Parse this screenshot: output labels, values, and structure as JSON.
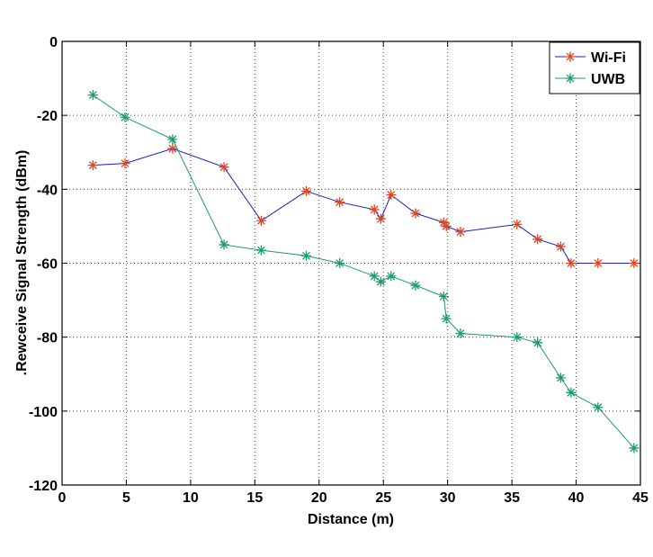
{
  "chart_data": {
    "type": "line",
    "title": "",
    "xlabel": "Distance (m)",
    "ylabel": ".Rewceive Signal Strength   (dBm)",
    "xlim": [
      0,
      45
    ],
    "ylim": [
      -120,
      0
    ],
    "xticks": [
      0,
      5,
      10,
      15,
      20,
      25,
      30,
      35,
      40,
      45
    ],
    "yticks": [
      0,
      -20,
      -40,
      -60,
      -80,
      -100,
      -120
    ],
    "grid": true,
    "legend_position": "top-right",
    "series": [
      {
        "name": "Wi-Fi",
        "line_color": "#1e1ec8",
        "marker_color": "#e0441c",
        "marker": "asterisk",
        "x": [
          2.4,
          4.9,
          8.6,
          12.6,
          15.5,
          19.0,
          21.6,
          24.3,
          24.8,
          25.6,
          27.5,
          29.7,
          29.9,
          31.0,
          35.4,
          37.0,
          38.8,
          39.6,
          41.7,
          44.5
        ],
        "y": [
          -33.5,
          -33,
          -29,
          -34,
          -48.5,
          -40.5,
          -43.5,
          -45.5,
          -48,
          -41.5,
          -46.5,
          -49,
          -50,
          -51.5,
          -49.5,
          -53.5,
          -55.5,
          -60,
          -60,
          -60
        ]
      },
      {
        "name": "UWB",
        "line_color": "#1e9a6e",
        "marker_color": "#1e9a6e",
        "marker": "asterisk",
        "x": [
          2.4,
          4.9,
          8.6,
          12.6,
          15.5,
          19.0,
          21.6,
          24.3,
          24.8,
          25.6,
          27.5,
          29.7,
          29.9,
          31.0,
          35.4,
          37.0,
          38.8,
          39.6,
          41.7,
          44.5
        ],
        "y": [
          -14.5,
          -20.5,
          -26.5,
          -55,
          -56.5,
          -58,
          -60,
          -63.5,
          -65,
          -63.5,
          -66,
          -69,
          -75,
          -79,
          -80,
          -81.5,
          -91,
          -95,
          -99,
          -110
        ]
      }
    ]
  }
}
